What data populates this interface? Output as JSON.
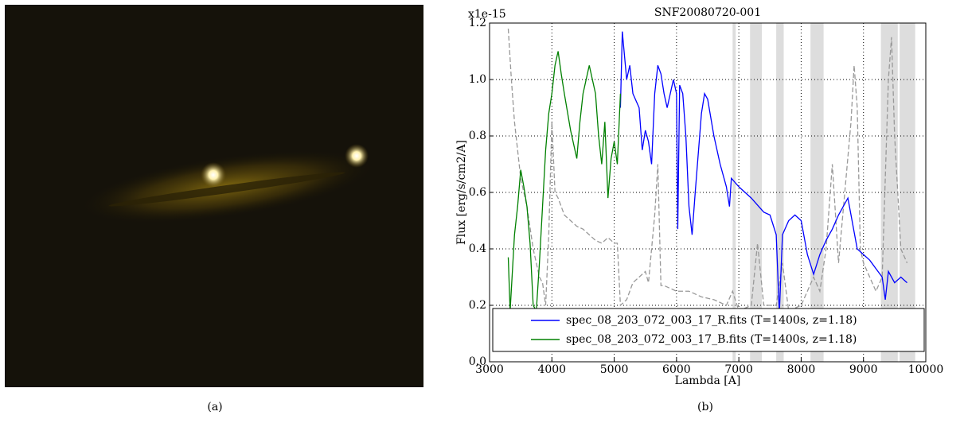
{
  "panels": {
    "a": "(a)",
    "b": "(b)"
  },
  "chart_data": {
    "type": "line",
    "title": "SNF20080720-001",
    "xlabel": "Lambda [A]",
    "ylabel": "Flux [erg/s/cm2/A]",
    "offset_text": "x1e-15",
    "xlim": [
      3000,
      10000
    ],
    "ylim": [
      0,
      1.2
    ],
    "xticks": [
      3000,
      4000,
      5000,
      6000,
      7000,
      8000,
      9000,
      10000
    ],
    "yticks": [
      {
        "value": 0,
        "label": "0.0"
      },
      0.2,
      0.4,
      0.6,
      0.8,
      {
        "value": 1,
        "label": "1.0"
      },
      1.2
    ],
    "grid": true,
    "legend": "lower right",
    "shaded_regions": [
      [
        6900,
        6950
      ],
      [
        7180,
        7370
      ],
      [
        7600,
        7720
      ],
      [
        8150,
        8360
      ],
      [
        9280,
        9550
      ],
      [
        9580,
        9830
      ]
    ],
    "shade_color": "#dddddd",
    "series": [
      {
        "color": "#999999",
        "linestyle": "dashed",
        "x": [
          3300,
          3350,
          3400,
          3500,
          3600,
          3700,
          3800,
          3850,
          3900,
          3950,
          4000,
          4050,
          4100,
          4200,
          4300,
          4400,
          4500,
          4600,
          4700,
          4800,
          4900,
          5000,
          5050,
          5100,
          5200,
          5300,
          5400,
          5500,
          5550,
          5600,
          5650,
          5700,
          5750,
          5800,
          6000,
          6200,
          6400,
          6600,
          6800,
          6900,
          7000,
          7200,
          7300,
          7400,
          7600,
          7700,
          7800,
          8000,
          8200,
          8300,
          8400,
          8500,
          8600,
          8700,
          8800,
          8850,
          8900,
          8950,
          9000,
          9200,
          9300,
          9400,
          9450,
          9500,
          9600,
          9700
        ],
        "values": [
          1.18,
          1.0,
          0.85,
          0.65,
          0.55,
          0.4,
          0.3,
          0.28,
          0.2,
          0.45,
          0.85,
          0.6,
          0.58,
          0.52,
          0.5,
          0.48,
          0.47,
          0.45,
          0.43,
          0.42,
          0.44,
          0.42,
          0.42,
          0.2,
          0.22,
          0.28,
          0.3,
          0.32,
          0.28,
          0.4,
          0.52,
          0.7,
          0.27,
          0.27,
          0.25,
          0.25,
          0.23,
          0.22,
          0.2,
          0.25,
          0.18,
          0.2,
          0.42,
          0.2,
          0.2,
          0.35,
          0.18,
          0.2,
          0.3,
          0.25,
          0.4,
          0.7,
          0.35,
          0.6,
          0.85,
          1.05,
          0.9,
          0.4,
          0.35,
          0.25,
          0.3,
          1.0,
          1.15,
          0.8,
          0.4,
          0.35
        ]
      },
      {
        "name": "spec_08_203_072_003_17_R.fits (T=1400s, z=1.18)",
        "color": "#0000ff",
        "linestyle": "solid",
        "x": [
          5100,
          5130,
          5200,
          5250,
          5300,
          5400,
          5450,
          5500,
          5550,
          5600,
          5650,
          5700,
          5750,
          5800,
          5850,
          5900,
          5950,
          6000,
          6020,
          6050,
          6100,
          6150,
          6200,
          6250,
          6300,
          6400,
          6450,
          6500,
          6600,
          6700,
          6800,
          6850,
          6880,
          7000,
          7200,
          7400,
          7500,
          7600,
          7650,
          7700,
          7800,
          7900,
          8000,
          8100,
          8200,
          8300,
          8400,
          8500,
          8600,
          8700,
          8750,
          8800,
          8850,
          8900,
          9000,
          9100,
          9200,
          9300,
          9350,
          9400,
          9500,
          9600,
          9700
        ],
        "values": [
          0.9,
          1.17,
          1.0,
          1.05,
          0.95,
          0.9,
          0.75,
          0.82,
          0.78,
          0.7,
          0.95,
          1.05,
          1.02,
          0.95,
          0.9,
          0.95,
          1.0,
          0.95,
          0.47,
          0.98,
          0.95,
          0.8,
          0.55,
          0.45,
          0.6,
          0.88,
          0.95,
          0.93,
          0.8,
          0.7,
          0.62,
          0.55,
          0.65,
          0.62,
          0.58,
          0.53,
          0.52,
          0.45,
          0.17,
          0.45,
          0.5,
          0.52,
          0.5,
          0.38,
          0.31,
          0.38,
          0.43,
          0.47,
          0.52,
          0.56,
          0.58,
          0.52,
          0.46,
          0.4,
          0.38,
          0.36,
          0.33,
          0.3,
          0.22,
          0.32,
          0.28,
          0.3,
          0.28
        ]
      },
      {
        "name": "spec_08_203_072_003_17_B.fits (T=1400s, z=1.18)",
        "color": "#008000",
        "linestyle": "solid",
        "x": [
          3300,
          3330,
          3400,
          3450,
          3500,
          3550,
          3600,
          3650,
          3700,
          3750,
          3800,
          3850,
          3900,
          3950,
          4000,
          4050,
          4100,
          4150,
          4200,
          4300,
          4400,
          4450,
          4500,
          4600,
          4650,
          4700,
          4750,
          4800,
          4850,
          4900,
          4950,
          5000,
          5050,
          5100
        ],
        "values": [
          0.37,
          0.18,
          0.45,
          0.55,
          0.68,
          0.62,
          0.55,
          0.42,
          0.2,
          0.18,
          0.35,
          0.55,
          0.75,
          0.88,
          0.95,
          1.05,
          1.1,
          1.02,
          0.95,
          0.82,
          0.72,
          0.85,
          0.95,
          1.05,
          1.0,
          0.95,
          0.8,
          0.7,
          0.85,
          0.58,
          0.72,
          0.78,
          0.7,
          0.95
        ]
      }
    ]
  }
}
